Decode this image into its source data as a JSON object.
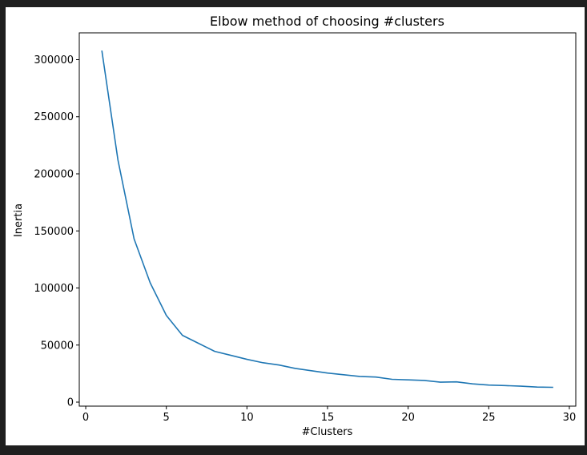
{
  "chart_data": {
    "type": "line",
    "title": "Elbow method of choosing #clusters",
    "xlabel": "#Clusters",
    "ylabel": "Inertia",
    "xlim": [
      -0.4,
      30.4
    ],
    "ylim": [
      -3500,
      323500
    ],
    "xticks": [
      0,
      5,
      10,
      15,
      20,
      25,
      30
    ],
    "yticks": [
      0,
      50000,
      100000,
      150000,
      200000,
      250000,
      300000
    ],
    "xtick_labels": [
      "0",
      "5",
      "10",
      "15",
      "20",
      "25",
      "30"
    ],
    "ytick_labels": [
      "0",
      "50000",
      "100000",
      "150000",
      "200000",
      "250000",
      "300000"
    ],
    "grid": false,
    "series": [
      {
        "color": "#1f77b4",
        "x": [
          1,
          2,
          3,
          4,
          5,
          6,
          7,
          8,
          9,
          10,
          11,
          12,
          13,
          14,
          15,
          16,
          17,
          18,
          19,
          20,
          21,
          22,
          23,
          24,
          25,
          26,
          27,
          28,
          29
        ],
        "y": [
          308000,
          212000,
          143000,
          104500,
          76000,
          58500,
          51500,
          44500,
          41000,
          37500,
          34500,
          32500,
          29500,
          27500,
          25500,
          24000,
          22500,
          22000,
          20000,
          19500,
          19000,
          17500,
          17800,
          16000,
          15000,
          14500,
          14000,
          13200,
          13000
        ]
      }
    ]
  }
}
